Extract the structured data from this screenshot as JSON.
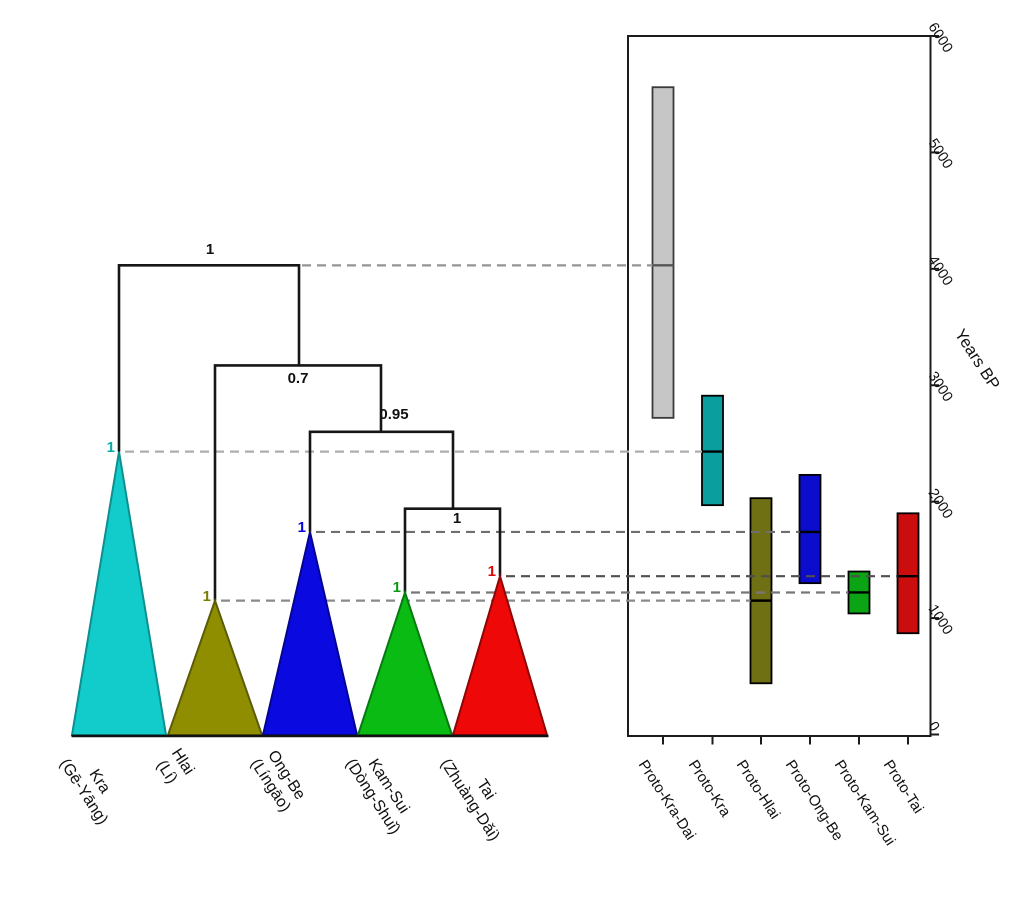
{
  "figure": {
    "tree": {
      "internal_nodes": [
        {
          "id": "root",
          "support": "1",
          "bp": 4030
        },
        {
          "id": "hlai-rest",
          "support": "0.7",
          "bp": 3170
        },
        {
          "id": "ongbe-kamsui-tai",
          "support": "0.95",
          "bp": 2600
        },
        {
          "id": "kamsui-tai",
          "support": "1",
          "bp": 1940
        }
      ],
      "clades": [
        {
          "name": "Kra",
          "native": "(Gē-Yāng)",
          "tip_support": "1",
          "crown_bp": 2430,
          "fill": "#12cccc",
          "edge": "#0b8f8f",
          "label_color": "#0ba8a8"
        },
        {
          "name": "Hlai",
          "native": "(Lí)",
          "tip_support": "1",
          "crown_bp": 1150,
          "fill": "#8e8e00",
          "edge": "#5c5c06",
          "label_color": "#7c7c00"
        },
        {
          "name": "Ong-Be",
          "native": "(Língāo)",
          "tip_support": "1",
          "crown_bp": 1740,
          "fill": "#0a0ae0",
          "edge": "#05058f",
          "label_color": "#0505dd"
        },
        {
          "name": "Kam-Sui",
          "native": "(Dòng-Shuǐ)",
          "tip_support": "1",
          "crown_bp": 1220,
          "fill": "#0abb14",
          "edge": "#067a10",
          "label_color": "#0a9a10"
        },
        {
          "name": "Tai",
          "native": "(Zhuàng-Dǎi)",
          "tip_support": "1",
          "crown_bp": 1360,
          "fill": "#ee0808",
          "edge": "#8f0505",
          "label_color": "#dd0505"
        }
      ]
    }
  },
  "chart_data": {
    "type": "boxplot",
    "orientation": "vertical",
    "title": "",
    "xlabel": "",
    "ylabel": "Years BP",
    "ylim": [
      0,
      6000
    ],
    "yticks": [
      0,
      1000,
      2000,
      3000,
      4000,
      5000,
      6000
    ],
    "grid": false,
    "legend": "none",
    "categories": [
      "Proto-Kra-Dai",
      "Proto-Kra",
      "Proto-Hlai",
      "Proto-Ong-Be",
      "Proto-Kam-Sui",
      "Proto-Tai"
    ],
    "series": [
      {
        "name": "Proto-Kra-Dai",
        "low": 2720,
        "median": 4030,
        "high": 5560,
        "color": "#c6c6c6",
        "median_color": "#555555"
      },
      {
        "name": "Proto-Kra",
        "low": 1970,
        "median": 2430,
        "high": 2910,
        "color": "#0a9e9e",
        "median_color": "#000000"
      },
      {
        "name": "Proto-Hlai",
        "low": 440,
        "median": 1150,
        "high": 2030,
        "color": "#6f6f14",
        "median_color": "#000000"
      },
      {
        "name": "Proto-Ong-Be",
        "low": 1300,
        "median": 1740,
        "high": 2230,
        "color": "#0c0ccc",
        "median_color": "#000000"
      },
      {
        "name": "Proto-Kam-Sui",
        "low": 1040,
        "median": 1220,
        "high": 1400,
        "color": "#0aa414",
        "median_color": "#000000"
      },
      {
        "name": "Proto-Tai",
        "low": 870,
        "median": 1360,
        "high": 1900,
        "color": "#cc0d0d",
        "median_color": "#000000"
      }
    ],
    "connector_lines": "dashed gray lines link each tree node to the median of its date range bar"
  }
}
